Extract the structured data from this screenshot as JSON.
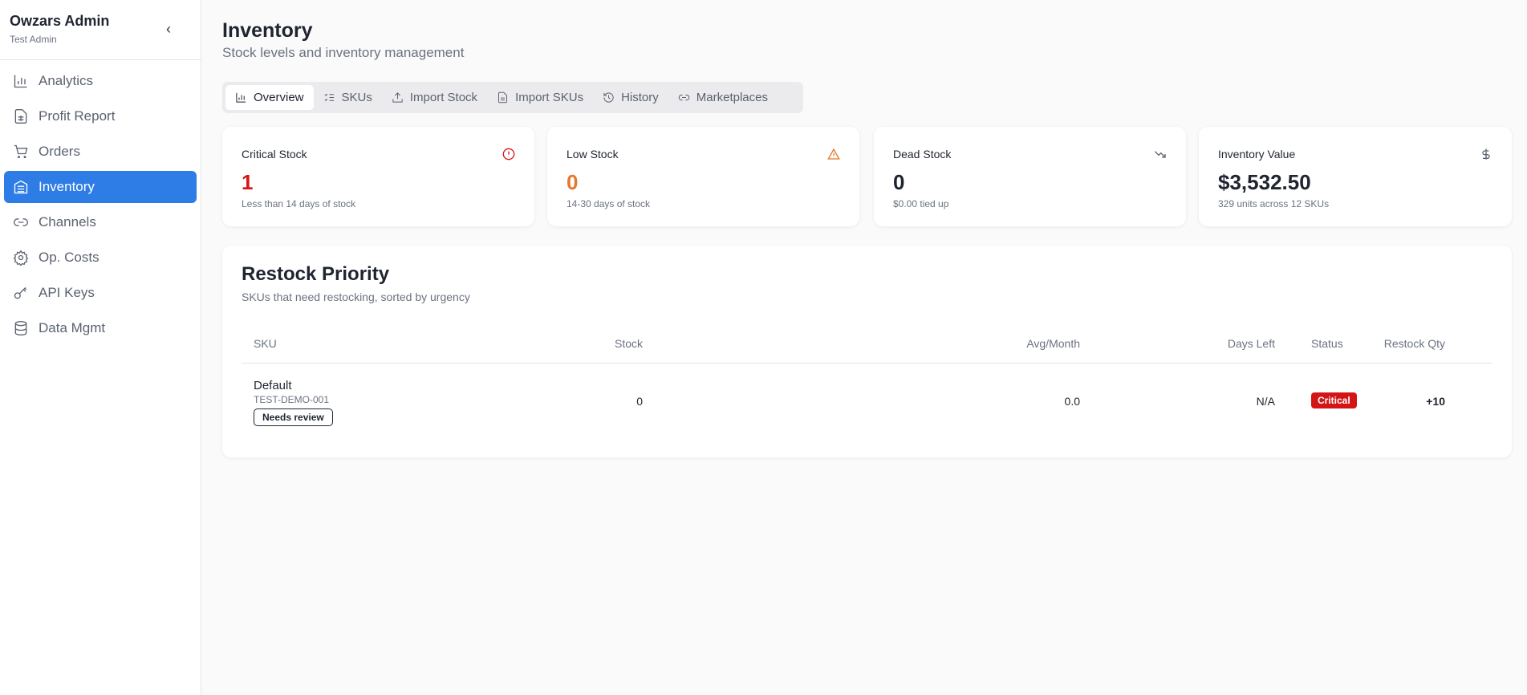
{
  "sidebar": {
    "title": "Owzars Admin",
    "subtitle": "Test Admin",
    "collapse_icon": "chevron-left-icon",
    "items": [
      {
        "label": "Analytics",
        "icon": "bar-chart-icon"
      },
      {
        "label": "Profit Report",
        "icon": "file-spreadsheet-icon"
      },
      {
        "label": "Orders",
        "icon": "shopping-cart-icon"
      },
      {
        "label": "Inventory",
        "icon": "warehouse-icon",
        "active": true
      },
      {
        "label": "Channels",
        "icon": "link-icon"
      },
      {
        "label": "Op. Costs",
        "icon": "gear-icon"
      },
      {
        "label": "API Keys",
        "icon": "key-icon"
      },
      {
        "label": "Data Mgmt",
        "icon": "database-icon"
      }
    ]
  },
  "header": {
    "title": "Inventory",
    "subtitle": "Stock levels and inventory management"
  },
  "tabs": [
    {
      "label": "Overview",
      "active": true
    },
    {
      "label": "SKUs"
    },
    {
      "label": "Import Stock"
    },
    {
      "label": "Import SKUs"
    },
    {
      "label": "History"
    },
    {
      "label": "Marketplaces"
    }
  ],
  "cards": [
    {
      "label": "Critical Stock",
      "value": "1",
      "hint": "Less than 14 days of stock",
      "color": "#d31515",
      "icon": "alert-circle-icon"
    },
    {
      "label": "Low Stock",
      "value": "0",
      "hint": "14-30 days of stock",
      "color": "#e8772e",
      "icon": "alert-triangle-icon"
    },
    {
      "label": "Dead Stock",
      "value": "0",
      "hint": "$0.00 tied up",
      "color": "#1f2430",
      "icon": "trending-down-icon"
    },
    {
      "label": "Inventory Value",
      "value": "$3,532.50",
      "hint": "329 units across 12 SKUs",
      "color": "#1f2430",
      "icon": "dollar-icon"
    }
  ],
  "restock": {
    "title": "Restock Priority",
    "subtitle": "SKUs that need restocking, sorted by urgency",
    "columns": [
      "SKU",
      "Stock",
      "Avg/Month",
      "Days Left",
      "Restock Qty",
      "Status"
    ],
    "rows": [
      {
        "name": "Default",
        "sku": "TEST-DEMO-001",
        "tag": "Needs review",
        "stock": "0",
        "avg": "0.0",
        "days_left": "N/A",
        "restock_qty": "+10",
        "status": "Critical"
      }
    ]
  }
}
